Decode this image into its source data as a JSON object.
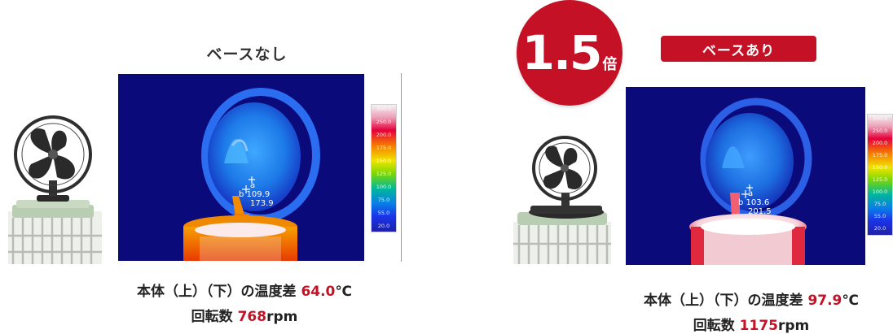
{
  "left": {
    "title": "ベースなし",
    "readout": {
      "a_label": "a",
      "b_label": "b",
      "a_value": "109.9",
      "b_value": "173.9"
    },
    "caption": {
      "prefix": "本体（上）（下）の温度差",
      "diff": "64.0",
      "diff_unit": "℃",
      "rpm_prefix": "回転数",
      "rpm": "768",
      "rpm_unit": "rpm"
    }
  },
  "right": {
    "title": "ベースあり",
    "multiplier": {
      "value": "1.5",
      "unit": "倍"
    },
    "readout": {
      "a_label": "a",
      "b_label": "b",
      "a_value": "103.6",
      "b_value": "201.5"
    },
    "caption": {
      "prefix": "本体（上）（下）の温度差",
      "diff": "97.9",
      "diff_unit": "℃",
      "rpm_prefix": "回転数",
      "rpm": "1175",
      "rpm_unit": "rpm"
    }
  },
  "scale_ticks": [
    "300.0",
    "250.0",
    "200.0",
    "175.0",
    "150.0",
    "125.0",
    "100.0",
    "75.0",
    "55.0",
    "20.0"
  ],
  "colors": {
    "accent": "#c41125",
    "thermal_bg": "#0b0a7a"
  }
}
